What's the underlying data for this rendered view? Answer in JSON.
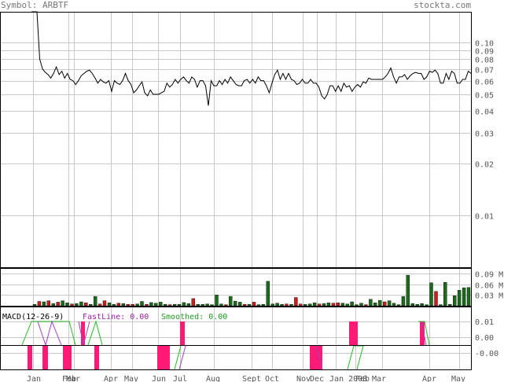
{
  "header": {
    "symbol_label": "Symbol: ARBTF",
    "site": "stockta.com"
  },
  "chart_data": {
    "type": "line",
    "symbol": "ARBTF",
    "y_scale": "log",
    "ylim": [
      0.005,
      0.15
    ],
    "price_ticks": [
      "0.10",
      "0.09",
      "0.08",
      "0.07",
      "0.06",
      "0.05",
      "0.04",
      "0.03",
      "0.02",
      "0.01"
    ],
    "x_tick_labels": [
      "Jan",
      "Feb",
      "Mar",
      "Apr",
      "May",
      "Jun",
      "Jul",
      "Aug",
      "Sept",
      "Oct",
      "Nov",
      "Dec",
      "Jan 2008",
      "Feb",
      "Mar",
      "Apr",
      "May"
    ],
    "series": [
      {
        "values": [
          0.15,
          0.15,
          0.15,
          0.08,
          0.07,
          0.067,
          0.065,
          0.062,
          0.066,
          0.072,
          0.065,
          0.068,
          0.062,
          0.066,
          0.061,
          0.06,
          0.057,
          0.06,
          0.064,
          0.066,
          0.068,
          0.069,
          0.066,
          0.062,
          0.058,
          0.061,
          0.059,
          0.058,
          0.06,
          0.052,
          0.06,
          0.058,
          0.057,
          0.06,
          0.066,
          0.06,
          0.057,
          0.051,
          0.053,
          0.056,
          0.059,
          0.051,
          0.049,
          0.053,
          0.05,
          0.05,
          0.05,
          0.051,
          0.052,
          0.058,
          0.055,
          0.057,
          0.061,
          0.058,
          0.061,
          0.063,
          0.06,
          0.058,
          0.063,
          0.061,
          0.055,
          0.06,
          0.06,
          0.056,
          0.043,
          0.06,
          0.056,
          0.056,
          0.06,
          0.057,
          0.061,
          0.058,
          0.063,
          0.06,
          0.057,
          0.056,
          0.056,
          0.06,
          0.061,
          0.058,
          0.061,
          0.058,
          0.063,
          0.06,
          0.06,
          0.056,
          0.051,
          0.058,
          0.065,
          0.069,
          0.061,
          0.066,
          0.061,
          0.066,
          0.061,
          0.06,
          0.057,
          0.058,
          0.061,
          0.058,
          0.058,
          0.061,
          0.058,
          0.058,
          0.055,
          0.049,
          0.047,
          0.05,
          0.056,
          0.056,
          0.052,
          0.056,
          0.052,
          0.058,
          0.055,
          0.056,
          0.052,
          0.055,
          0.057,
          0.055,
          0.059,
          0.058,
          0.062,
          0.061,
          0.061,
          0.061,
          0.061,
          0.061,
          0.063,
          0.066,
          0.071,
          0.063,
          0.058,
          0.063,
          0.063,
          0.065,
          0.061,
          0.064,
          0.066,
          0.067,
          0.066,
          0.066,
          0.061,
          0.063,
          0.068,
          0.067,
          0.069,
          0.066,
          0.058,
          0.058,
          0.066,
          0.061,
          0.068,
          0.066,
          0.058,
          0.058,
          0.061,
          0.061,
          0.068,
          0.066
        ]
      }
    ],
    "volume": {
      "ticks": [
        "0.09 M",
        "0.06 M",
        "0.03 M"
      ],
      "ylim": [
        0,
        0.105
      ],
      "bars": [
        [
          0.004,
          "up"
        ],
        [
          0.012,
          "dn"
        ],
        [
          0.011,
          "up"
        ],
        [
          0.014,
          "dn"
        ],
        [
          0.006,
          "up"
        ],
        [
          0.01,
          "dn"
        ],
        [
          0.014,
          "up"
        ],
        [
          0.008,
          "up"
        ],
        [
          0.005,
          "dn"
        ],
        [
          0.006,
          "up"
        ],
        [
          0.011,
          "up"
        ],
        [
          0.008,
          "dn"
        ],
        [
          0.004,
          "up"
        ],
        [
          0.026,
          "up"
        ],
        [
          0.005,
          "dn"
        ],
        [
          0.014,
          "dn"
        ],
        [
          0.008,
          "up"
        ],
        [
          0.004,
          "up"
        ],
        [
          0.007,
          "dn"
        ],
        [
          0.006,
          "up"
        ],
        [
          0.004,
          "dn"
        ],
        [
          0.004,
          "dn"
        ],
        [
          0.005,
          "up"
        ],
        [
          0.012,
          "up"
        ],
        [
          0.004,
          "dn"
        ],
        [
          0.009,
          "up"
        ],
        [
          0.007,
          "up"
        ],
        [
          0.01,
          "up"
        ],
        [
          0.004,
          "up"
        ],
        [
          0.003,
          "dn"
        ],
        [
          0.004,
          "up"
        ],
        [
          0.004,
          "up"
        ],
        [
          0.009,
          "up"
        ],
        [
          0.006,
          "up"
        ],
        [
          0.02,
          "dn"
        ],
        [
          0.004,
          "up"
        ],
        [
          0.004,
          "up"
        ],
        [
          0.005,
          "up"
        ],
        [
          0.003,
          "up"
        ],
        [
          0.03,
          "up"
        ],
        [
          0.005,
          "up"
        ],
        [
          0.003,
          "dn"
        ],
        [
          0.026,
          "up"
        ],
        [
          0.013,
          "up"
        ],
        [
          0.01,
          "up"
        ],
        [
          0.004,
          "dn"
        ],
        [
          0.004,
          "up"
        ],
        [
          0.01,
          "dn"
        ],
        [
          0.003,
          "up"
        ],
        [
          0.004,
          "up"
        ],
        [
          0.068,
          "up"
        ],
        [
          0.005,
          "up"
        ],
        [
          0.007,
          "up"
        ],
        [
          0.004,
          "up"
        ],
        [
          0.005,
          "dn"
        ],
        [
          0.004,
          "up"
        ],
        [
          0.023,
          "dn"
        ],
        [
          0.005,
          "dn"
        ],
        [
          0.004,
          "up"
        ],
        [
          0.005,
          "up"
        ],
        [
          0.008,
          "up"
        ],
        [
          0.005,
          "dn"
        ],
        [
          0.006,
          "up"
        ],
        [
          0.008,
          "up"
        ],
        [
          0.007,
          "dn"
        ],
        [
          0.008,
          "dn"
        ],
        [
          0.007,
          "up"
        ],
        [
          0.005,
          "up"
        ],
        [
          0.011,
          "up"
        ],
        [
          0.003,
          "up"
        ],
        [
          0.007,
          "up"
        ],
        [
          0.003,
          "dn"
        ],
        [
          0.018,
          "up"
        ],
        [
          0.008,
          "up"
        ],
        [
          0.015,
          "up"
        ],
        [
          0.011,
          "dn"
        ],
        [
          0.014,
          "up"
        ],
        [
          0.007,
          "up"
        ],
        [
          0.003,
          "up"
        ],
        [
          0.026,
          "up"
        ],
        [
          0.085,
          "up"
        ],
        [
          0.006,
          "up"
        ],
        [
          0.004,
          "up"
        ],
        [
          0.006,
          "up"
        ],
        [
          0.003,
          "up"
        ],
        [
          0.064,
          "up"
        ],
        [
          0.04,
          "dn"
        ],
        [
          0.003,
          "up"
        ],
        [
          0.065,
          "up"
        ],
        [
          0.004,
          "up"
        ],
        [
          0.028,
          "up"
        ],
        [
          0.043,
          "up"
        ],
        [
          0.05,
          "up"
        ],
        [
          0.051,
          "up"
        ]
      ]
    },
    "macd": {
      "title": "MACD(12-26-9)",
      "fast_label": "FastLine: 0.00",
      "smoothed_label": "Smoothed: 0.00",
      "ticks": [
        "0.01",
        "0.00",
        "-0.00"
      ],
      "top_hist_bars": [
        [
          103,
          108
        ],
        [
          229,
          235
        ],
        [
          444,
          455
        ],
        [
          534,
          540
        ]
      ],
      "bottom_hist_bars": [
        [
          35,
          41
        ],
        [
          54,
          61
        ],
        [
          80,
          91
        ],
        [
          120,
          126
        ],
        [
          200,
          216
        ],
        [
          394,
          410
        ]
      ]
    }
  }
}
